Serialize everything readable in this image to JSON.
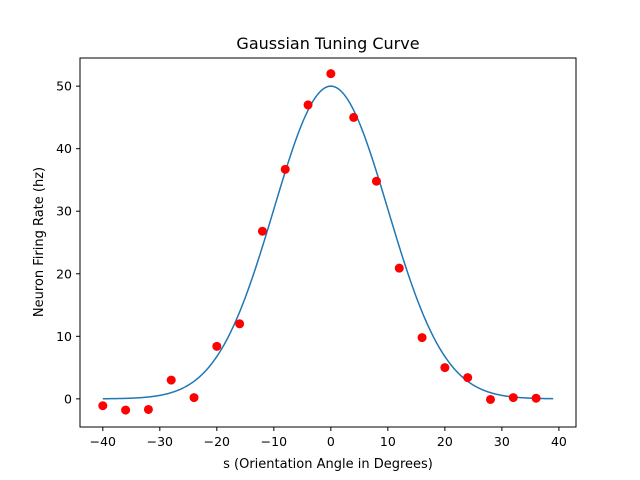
{
  "chart_data": {
    "type": "scatter",
    "title": "Gaussian Tuning Curve",
    "xlabel": "s (Orientation Angle in Degrees)",
    "ylabel": "Neuron Firing Rate (hz)",
    "xlim": [
      -44,
      43
    ],
    "ylim": [
      -4.5,
      54.5
    ],
    "xticks": [
      -40,
      -30,
      -20,
      -10,
      0,
      10,
      20,
      30,
      40
    ],
    "xtick_labels": [
      "−40",
      "−30",
      "−20",
      "−10",
      "0",
      "10",
      "20",
      "30",
      "40"
    ],
    "yticks": [
      0,
      10,
      20,
      30,
      40,
      50
    ],
    "ytick_labels": [
      "0",
      "10",
      "20",
      "30",
      "40",
      "50"
    ],
    "grid": false,
    "legend": false,
    "series": [
      {
        "kind": "scatter",
        "color": "#ff0000",
        "x": [
          -40,
          -36,
          -32,
          -28,
          -24,
          -20,
          -16,
          -12,
          -8,
          -4,
          0,
          4,
          8,
          12,
          16,
          20,
          24,
          28,
          32,
          36
        ],
        "y": [
          -1.1,
          -1.8,
          -1.7,
          3.0,
          0.2,
          8.4,
          12.0,
          26.8,
          36.7,
          47.0,
          52.0,
          45.0,
          34.8,
          20.9,
          9.8,
          5.0,
          3.4,
          -0.1,
          0.2,
          0.1
        ]
      },
      {
        "kind": "line",
        "color": "#1f77b4",
        "function": "gaussian",
        "amplitude": 50,
        "mean": 0,
        "sigma": 10,
        "x_range": [
          -40,
          39
        ]
      }
    ]
  }
}
